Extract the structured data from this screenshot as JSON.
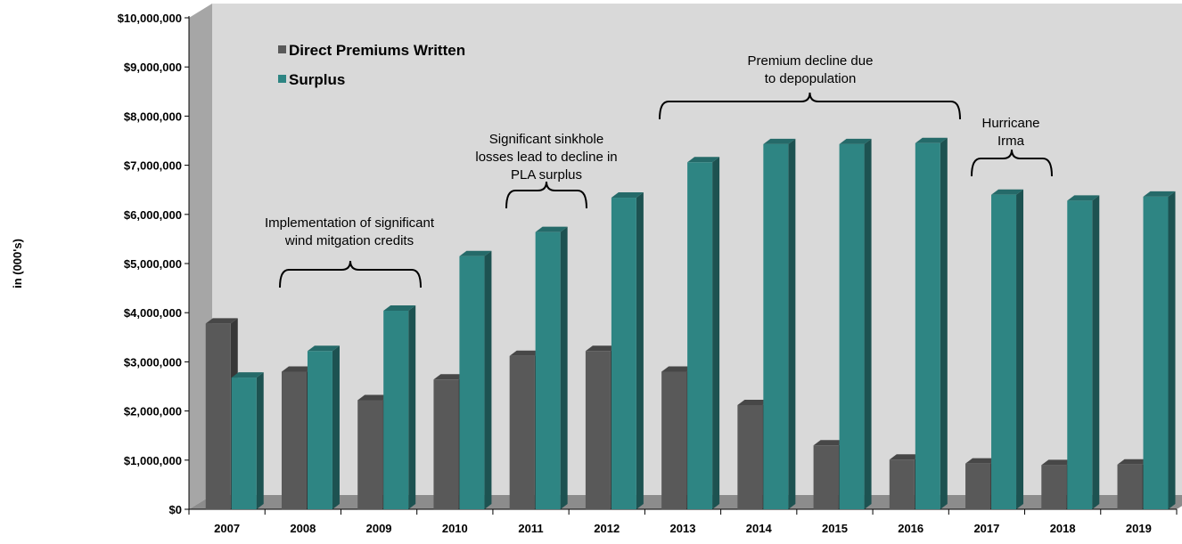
{
  "chart_data": {
    "type": "bar",
    "title": "",
    "xlabel": "",
    "ylabel": "in (000's)",
    "ylim": [
      0,
      10000000
    ],
    "yticks": [
      0,
      1000000,
      2000000,
      3000000,
      4000000,
      5000000,
      6000000,
      7000000,
      8000000,
      9000000,
      10000000
    ],
    "ytick_labels": [
      "$0",
      "$1,000,000",
      "$2,000,000",
      "$3,000,000",
      "$4,000,000",
      "$5,000,000",
      "$6,000,000",
      "$7,000,000",
      "$8,000,000",
      "$9,000,000",
      "$10,000,000"
    ],
    "categories": [
      "2007",
      "2008",
      "2009",
      "2010",
      "2011",
      "2012",
      "2013",
      "2014",
      "2015",
      "2016",
      "2017",
      "2018",
      "2019"
    ],
    "series": [
      {
        "name": "Direct Premiums Written",
        "color": "#595959",
        "values": [
          3780000,
          2800000,
          2220000,
          2640000,
          3120000,
          3220000,
          2800000,
          2120000,
          1300000,
          1010000,
          930000,
          900000,
          910000
        ]
      },
      {
        "name": "Surplus",
        "color": "#2e8583",
        "values": [
          2680000,
          3220000,
          4040000,
          5150000,
          5640000,
          6340000,
          7060000,
          7430000,
          7430000,
          7450000,
          6400000,
          6280000,
          6360000
        ]
      }
    ],
    "legend": {
      "position": "top-left"
    },
    "grid": false,
    "background_color": "#d9d9d9",
    "annotations": [
      {
        "lines": [
          "Implementation of significant",
          "wind mitgation credits"
        ],
        "span": [
          "2008",
          "2009"
        ]
      },
      {
        "lines": [
          "Significant sinkhole",
          "losses lead to decline in",
          "PLA surplus"
        ],
        "span": [
          "2011",
          "2011"
        ]
      },
      {
        "lines": [
          "Premium decline due",
          "to depopulation"
        ],
        "span": [
          "2013",
          "2016"
        ]
      },
      {
        "lines": [
          "Hurricane",
          "Irma"
        ],
        "span": [
          "2017",
          "2017"
        ]
      }
    ]
  }
}
